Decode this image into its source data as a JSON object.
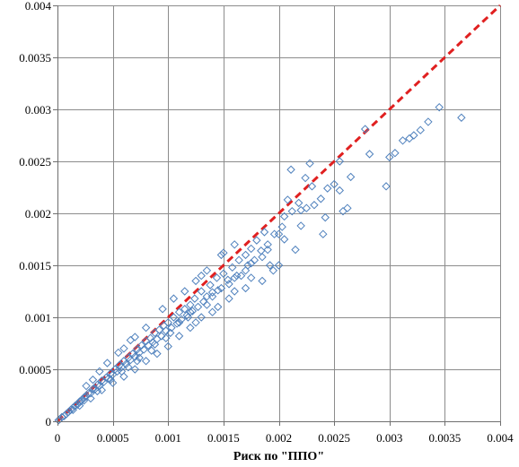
{
  "chart_data": {
    "type": "scatter",
    "title": "",
    "xlabel": "Риск по \"ППО\"",
    "ylabel": "",
    "xlim": [
      0,
      0.004
    ],
    "ylim": [
      0,
      0.004
    ],
    "grid": "vertical and horizontal",
    "legend": "none",
    "x_ticks": [
      0,
      0.0005,
      0.001,
      0.0015,
      0.002,
      0.0025,
      0.003,
      0.0035,
      0.004
    ],
    "x_tick_labels": [
      "0",
      "0.0005",
      "0.001",
      "0.0015",
      "0.002",
      "0.0025",
      "0.003",
      "0.0035",
      "0.004"
    ],
    "y_ticks": [
      0,
      0.0005,
      0.001,
      0.0015,
      0.002,
      0.0025,
      0.003,
      0.0035,
      0.004
    ],
    "y_tick_labels": [
      "0",
      "0.0005",
      "0.001",
      "0.0015",
      "0.002",
      "0.0025",
      "0.003",
      "0.0035",
      "0.004"
    ],
    "marker": "diamond-open",
    "point_color": "#4f81bd",
    "reference_line": {
      "style": "dashed",
      "color": "#e02020",
      "from": [
        0,
        0
      ],
      "to": [
        0.004,
        0.004
      ]
    },
    "series": [
      {
        "values": [
          [
            0.00365,
            0.00292
          ],
          [
            0.00345,
            0.00302
          ],
          [
            0.00335,
            0.00288
          ],
          [
            0.00328,
            0.0028
          ],
          [
            0.00322,
            0.00275
          ],
          [
            0.00318,
            0.00272
          ],
          [
            0.00312,
            0.0027
          ],
          [
            0.00305,
            0.00258
          ],
          [
            0.003,
            0.00254
          ],
          [
            0.00297,
            0.00226
          ],
          [
            0.00282,
            0.00257
          ],
          [
            0.00278,
            0.00281
          ],
          [
            0.00265,
            0.00235
          ],
          [
            0.00262,
            0.00205
          ],
          [
            0.00258,
            0.00202
          ],
          [
            0.00255,
            0.0025
          ],
          [
            0.00255,
            0.00222
          ],
          [
            0.0025,
            0.00228
          ],
          [
            0.00244,
            0.00224
          ],
          [
            0.00242,
            0.00196
          ],
          [
            0.00238,
            0.00214
          ],
          [
            0.00232,
            0.00208
          ],
          [
            0.0023,
            0.00226
          ],
          [
            0.00228,
            0.00248
          ],
          [
            0.00225,
            0.00205
          ],
          [
            0.00224,
            0.00234
          ],
          [
            0.0022,
            0.00203
          ],
          [
            0.00218,
            0.0021
          ],
          [
            0.00212,
            0.00202
          ],
          [
            0.00211,
            0.00242
          ],
          [
            0.00208,
            0.00213
          ],
          [
            0.00205,
            0.00197
          ],
          [
            0.00203,
            0.00187
          ],
          [
            0.002,
            0.0018
          ],
          [
            0.00196,
            0.0018
          ],
          [
            0.00192,
            0.0015
          ],
          [
            0.0019,
            0.0017
          ],
          [
            0.00187,
            0.00182
          ],
          [
            0.00184,
            0.00164
          ],
          [
            0.0018,
            0.00174
          ],
          [
            0.00178,
            0.00155
          ],
          [
            0.00175,
            0.00166
          ],
          [
            0.00172,
            0.0015
          ],
          [
            0.0017,
            0.0016
          ],
          [
            0.00166,
            0.0014
          ],
          [
            0.00164,
            0.00155
          ],
          [
            0.0016,
            0.00138
          ],
          [
            0.00158,
            0.00148
          ],
          [
            0.00154,
            0.00136
          ],
          [
            0.0015,
            0.00142
          ],
          [
            0.00148,
            0.00128
          ],
          [
            0.00144,
            0.00138
          ],
          [
            0.0014,
            0.00124
          ],
          [
            0.00138,
            0.00131
          ],
          [
            0.00135,
            0.0012
          ],
          [
            0.00132,
            0.00115
          ],
          [
            0.0013,
            0.00125
          ],
          [
            0.00127,
            0.0011
          ],
          [
            0.00124,
            0.00118
          ],
          [
            0.00122,
            0.00106
          ],
          [
            0.0012,
            0.00112
          ],
          [
            0.00117,
            0.00102
          ],
          [
            0.00115,
            0.00108
          ],
          [
            0.00112,
            0.00098
          ],
          [
            0.0011,
            0.00105
          ],
          [
            0.00108,
            0.00094
          ],
          [
            0.00105,
            0.001
          ],
          [
            0.00103,
            0.0009
          ],
          [
            0.001,
            0.00095
          ],
          [
            0.00098,
            0.00087
          ],
          [
            0.00096,
            0.00092
          ],
          [
            0.00094,
            0.00082
          ],
          [
            0.00092,
            0.00088
          ],
          [
            0.0009,
            0.00079
          ],
          [
            0.00088,
            0.00085
          ],
          [
            0.00086,
            0.00076
          ],
          [
            0.00084,
            0.0008
          ],
          [
            0.00082,
            0.00073
          ],
          [
            0.0008,
            0.00077
          ],
          [
            0.00078,
            0.00069
          ],
          [
            0.00076,
            0.00073
          ],
          [
            0.00074,
            0.00066
          ],
          [
            0.00072,
            0.00069
          ],
          [
            0.0007,
            0.00062
          ],
          [
            0.00068,
            0.00065
          ],
          [
            0.00066,
            0.00059
          ],
          [
            0.00064,
            0.00061
          ],
          [
            0.00062,
            0.00055
          ],
          [
            0.0006,
            0.00058
          ],
          [
            0.00058,
            0.00052
          ],
          [
            0.00056,
            0.00054
          ],
          [
            0.00054,
            0.00048
          ],
          [
            0.00052,
            0.0005
          ],
          [
            0.0005,
            0.00045
          ],
          [
            0.00048,
            0.00046
          ],
          [
            0.00046,
            0.00041
          ],
          [
            0.00044,
            0.00042
          ],
          [
            0.00042,
            0.00038
          ],
          [
            0.0004,
            0.00039
          ],
          [
            0.00038,
            0.00034
          ],
          [
            0.00036,
            0.00035
          ],
          [
            0.00034,
            0.00031
          ],
          [
            0.00032,
            0.00031
          ],
          [
            0.0003,
            0.00027
          ],
          [
            0.00028,
            0.00027
          ],
          [
            0.00026,
            0.00024
          ],
          [
            0.00024,
            0.00023
          ],
          [
            0.00022,
            0.0002
          ],
          [
            0.0002,
            0.00019
          ],
          [
            0.00018,
            0.00016
          ],
          [
            0.00016,
            0.00015
          ],
          [
            0.00014,
            0.00013
          ],
          [
            0.00012,
            0.00011
          ],
          [
            0.0001,
            9e-05
          ],
          [
            8e-05,
            7e-05
          ],
          [
            6e-05,
            5e-05
          ],
          [
            4e-05,
            4e-05
          ],
          [
            2e-05,
            2e-05
          ],
          [
            1e-05,
            1e-05
          ],
          [
            0.00095,
            0.00108
          ],
          [
            0.0008,
            0.0009
          ],
          [
            0.0007,
            0.00081
          ],
          [
            0.0006,
            0.0007
          ],
          [
            0.00115,
            0.00125
          ],
          [
            0.00125,
            0.00135
          ],
          [
            0.00135,
            0.00145
          ],
          [
            0.0015,
            0.00162
          ],
          [
            0.0016,
            0.0017
          ],
          [
            0.00148,
            0.0016
          ],
          [
            0.0013,
            0.0014
          ],
          [
            0.00105,
            0.00118
          ],
          [
            0.00066,
            0.00078
          ],
          [
            0.00055,
            0.00066
          ],
          [
            0.00045,
            0.00056
          ],
          [
            0.00038,
            0.00048
          ],
          [
            0.00032,
            0.0004
          ],
          [
            0.00026,
            0.00034
          ],
          [
            0.0009,
            0.00065
          ],
          [
            0.001,
            0.00072
          ],
          [
            0.0011,
            0.00082
          ],
          [
            0.0012,
            0.0009
          ],
          [
            0.0013,
            0.001
          ],
          [
            0.00145,
            0.0011
          ],
          [
            0.00155,
            0.00118
          ],
          [
            0.0017,
            0.00128
          ],
          [
            0.00185,
            0.00135
          ],
          [
            0.002,
            0.0015
          ],
          [
            0.0008,
            0.00058
          ],
          [
            0.0007,
            0.0005
          ],
          [
            0.0006,
            0.00043
          ],
          [
            0.0005,
            0.00037
          ],
          [
            0.0004,
            0.0003
          ],
          [
            0.0003,
            0.00022
          ],
          [
            0.0002,
            0.00015
          ],
          [
            0.0024,
            0.0018
          ],
          [
            0.00215,
            0.00165
          ],
          [
            0.00195,
            0.00145
          ],
          [
            0.00175,
            0.00138
          ],
          [
            0.0016,
            0.00125
          ],
          [
            0.0014,
            0.00105
          ],
          [
            0.00125,
            0.00095
          ],
          [
            0.00135,
            0.00112
          ],
          [
            0.00118,
            0.001
          ],
          [
            0.00102,
            0.00085
          ],
          [
            0.00088,
            0.00074
          ],
          [
            0.00074,
            0.00061
          ],
          [
            0.00064,
            0.00052
          ],
          [
            0.0011,
            0.00095
          ],
          [
            0.0012,
            0.00105
          ],
          [
            0.0014,
            0.0012
          ],
          [
            0.00155,
            0.00132
          ],
          [
            0.0017,
            0.00145
          ],
          [
            0.00185,
            0.00158
          ],
          [
            0.00205,
            0.00175
          ],
          [
            0.0022,
            0.00188
          ],
          [
            0.0019,
            0.00165
          ],
          [
            0.00175,
            0.00152
          ],
          [
            0.00162,
            0.0014
          ],
          [
            0.00145,
            0.00126
          ],
          [
            0.00098,
            0.0008
          ],
          [
            0.00085,
            0.00068
          ],
          [
            0.00072,
            0.00058
          ],
          [
            0.00058,
            0.00048
          ],
          [
            0.00048,
            0.0004
          ],
          [
            0.00036,
            0.00029
          ],
          [
            0.00024,
            0.0002
          ],
          [
            0.00014,
            0.00011
          ]
        ]
      }
    ]
  }
}
